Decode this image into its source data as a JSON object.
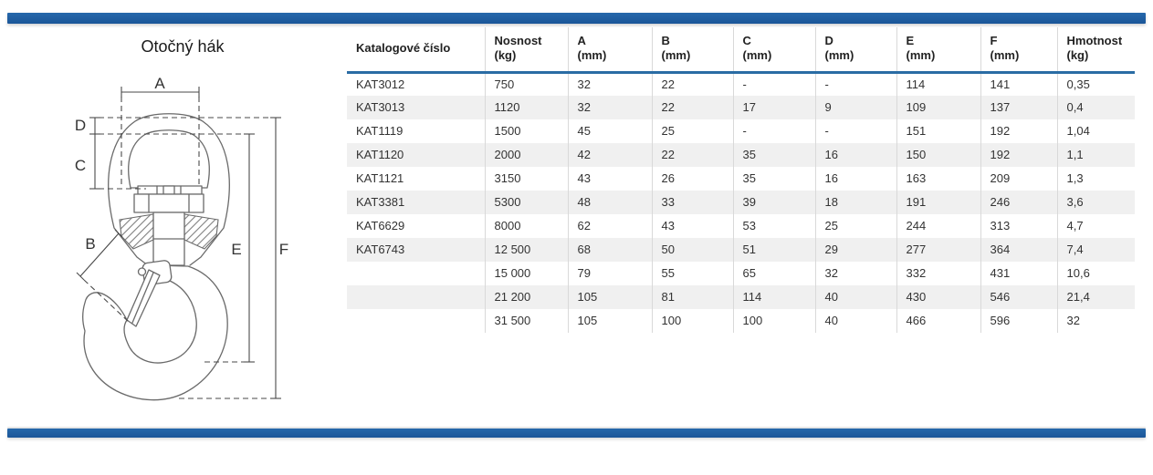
{
  "page": {
    "title": "Otočný hák",
    "colors": {
      "accent_blue": "#2163a4",
      "header_rule_blue": "#2a6ca4",
      "row_stripe_gray": "#f0f0f0",
      "column_border_gray": "#d9d9d9",
      "drawing_line_gray": "#6a6a6a"
    }
  },
  "drawing": {
    "title": "Otočný hák",
    "labels": {
      "a": "A",
      "b": "B",
      "c": "C",
      "d": "D",
      "e": "E",
      "f": "F"
    }
  },
  "table": {
    "columns": [
      {
        "key": "katalogove-cislo",
        "label": "Katalogové číslo",
        "unit": ""
      },
      {
        "key": "nosnost",
        "label": "Nosnost",
        "unit": "(kg)"
      },
      {
        "key": "a",
        "label": "A",
        "unit": "(mm)"
      },
      {
        "key": "b",
        "label": "B",
        "unit": "(mm)"
      },
      {
        "key": "c",
        "label": "C",
        "unit": "(mm)"
      },
      {
        "key": "d",
        "label": "D",
        "unit": "(mm)"
      },
      {
        "key": "e",
        "label": "E",
        "unit": "(mm)"
      },
      {
        "key": "f",
        "label": "F",
        "unit": "(mm)"
      },
      {
        "key": "hmotnost",
        "label": "Hmotnost",
        "unit": "(kg)"
      }
    ],
    "rows": [
      [
        "KAT3012",
        "750",
        "32",
        "22",
        "-",
        "-",
        "114",
        "141",
        "0,35"
      ],
      [
        "KAT3013",
        "1120",
        "32",
        "22",
        "17",
        "9",
        "109",
        "137",
        "0,4"
      ],
      [
        "KAT1119",
        "1500",
        "45",
        "25",
        "-",
        "-",
        "151",
        "192",
        "1,04"
      ],
      [
        "KAT1120",
        "2000",
        "42",
        "22",
        "35",
        "16",
        "150",
        "192",
        "1,1"
      ],
      [
        "KAT1121",
        "3150",
        "43",
        "26",
        "35",
        "16",
        "163",
        "209",
        "1,3"
      ],
      [
        "KAT3381",
        "5300",
        "48",
        "33",
        "39",
        "18",
        "191",
        "246",
        "3,6"
      ],
      [
        "KAT6629",
        "8000",
        "62",
        "43",
        "53",
        "25",
        "244",
        "313",
        "4,7"
      ],
      [
        "KAT6743",
        "12 500",
        "68",
        "50",
        "51",
        "29",
        "277",
        "364",
        "7,4"
      ],
      [
        "",
        "15 000",
        "79",
        "55",
        "65",
        "32",
        "332",
        "431",
        "10,6"
      ],
      [
        "",
        "21 200",
        "105",
        "81",
        "114",
        "40",
        "430",
        "546",
        "21,4"
      ],
      [
        "",
        "31 500",
        "105",
        "100",
        "100",
        "40",
        "466",
        "596",
        "32"
      ]
    ]
  }
}
